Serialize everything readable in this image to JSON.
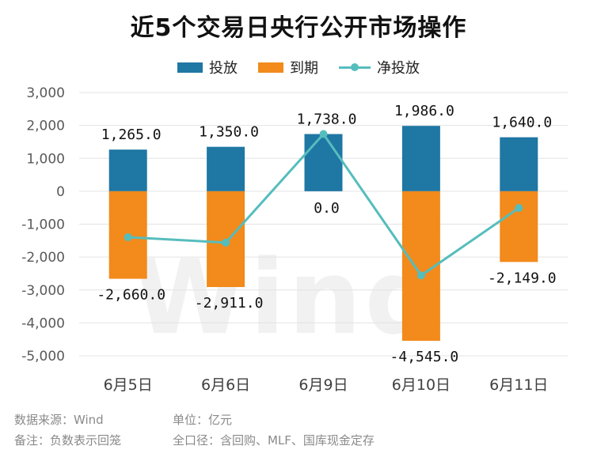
{
  "title": "近5个交易日央行公开市场操作",
  "watermark": "Wind",
  "footer": {
    "source": "数据来源：Wind",
    "unit": "单位：亿元",
    "note": "备注：负数表示回笼",
    "scope": "全口径：含回购、MLF、国库现金定存"
  },
  "colors": {
    "invest": "#1f77a4",
    "expire": "#f28a1c",
    "net": "#56bdbd"
  },
  "chart_data": {
    "type": "bar",
    "categories": [
      "6月5日",
      "6月6日",
      "6月9日",
      "6月10日",
      "6月11日"
    ],
    "series": [
      {
        "name": "投放",
        "kind": "bar",
        "values": [
          1265.0,
          1350.0,
          1738.0,
          1986.0,
          1640.0
        ],
        "labels": [
          "1,265.0",
          "1,350.0",
          "1,738.0",
          "1,986.0",
          "1,640.0"
        ]
      },
      {
        "name": "到期",
        "kind": "bar",
        "values": [
          -2660.0,
          -2911.0,
          0.0,
          -4545.0,
          -2149.0
        ],
        "labels": [
          "-2,660.0",
          "-2,911.0",
          "0.0",
          "-4,545.0",
          "-2,149.0"
        ]
      },
      {
        "name": "净投放",
        "kind": "line",
        "values": [
          -1395.0,
          -1561.0,
          1738.0,
          -2559.0,
          -509.0
        ]
      }
    ],
    "ylim": [
      -5000,
      3000
    ],
    "yticks": [
      3000,
      2000,
      1000,
      0,
      -1000,
      -2000,
      -3000,
      -4000,
      -5000
    ],
    "ytick_labels": [
      "3,000",
      "2,000",
      "1,000",
      "0",
      "-1,000",
      "-2,000",
      "-3,000",
      "-4,000",
      "-5,000"
    ],
    "grid": true,
    "legend": "top"
  }
}
